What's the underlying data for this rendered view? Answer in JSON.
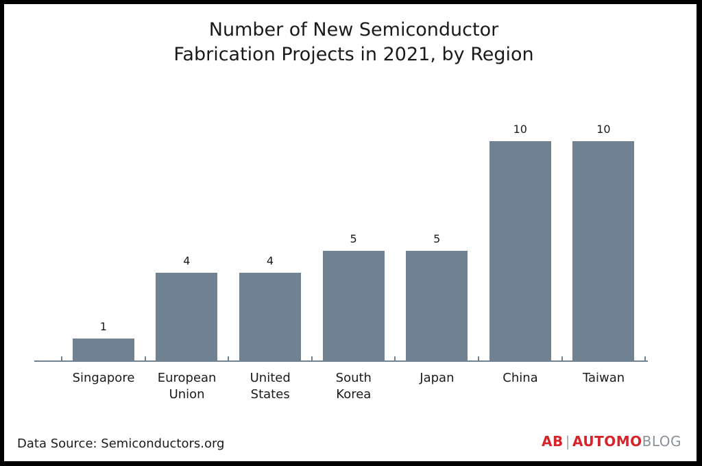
{
  "chart_data": {
    "type": "bar",
    "title": "Number of New Semiconductor Fabrication Projects in 2021, by Region",
    "title_lines": [
      "Number of New Semiconductor",
      "Fabrication Projects in 2021, by Region"
    ],
    "categories": [
      "Singapore",
      "European\nUnion",
      "United\nStates",
      "South\nKorea",
      "Japan",
      "China",
      "Taiwan"
    ],
    "values": [
      1,
      4,
      4,
      5,
      5,
      10,
      10
    ],
    "xlabel": "",
    "ylabel": "",
    "ylim": [
      0,
      10
    ],
    "grid": false,
    "data_labels": true,
    "bar_color": "#708191"
  },
  "footer": {
    "source": "Data Source: Semiconductors.org",
    "logo": {
      "mark": "AB",
      "sep": "|",
      "brand_red": "AUTOMO",
      "brand_gray": "BLOG"
    }
  }
}
